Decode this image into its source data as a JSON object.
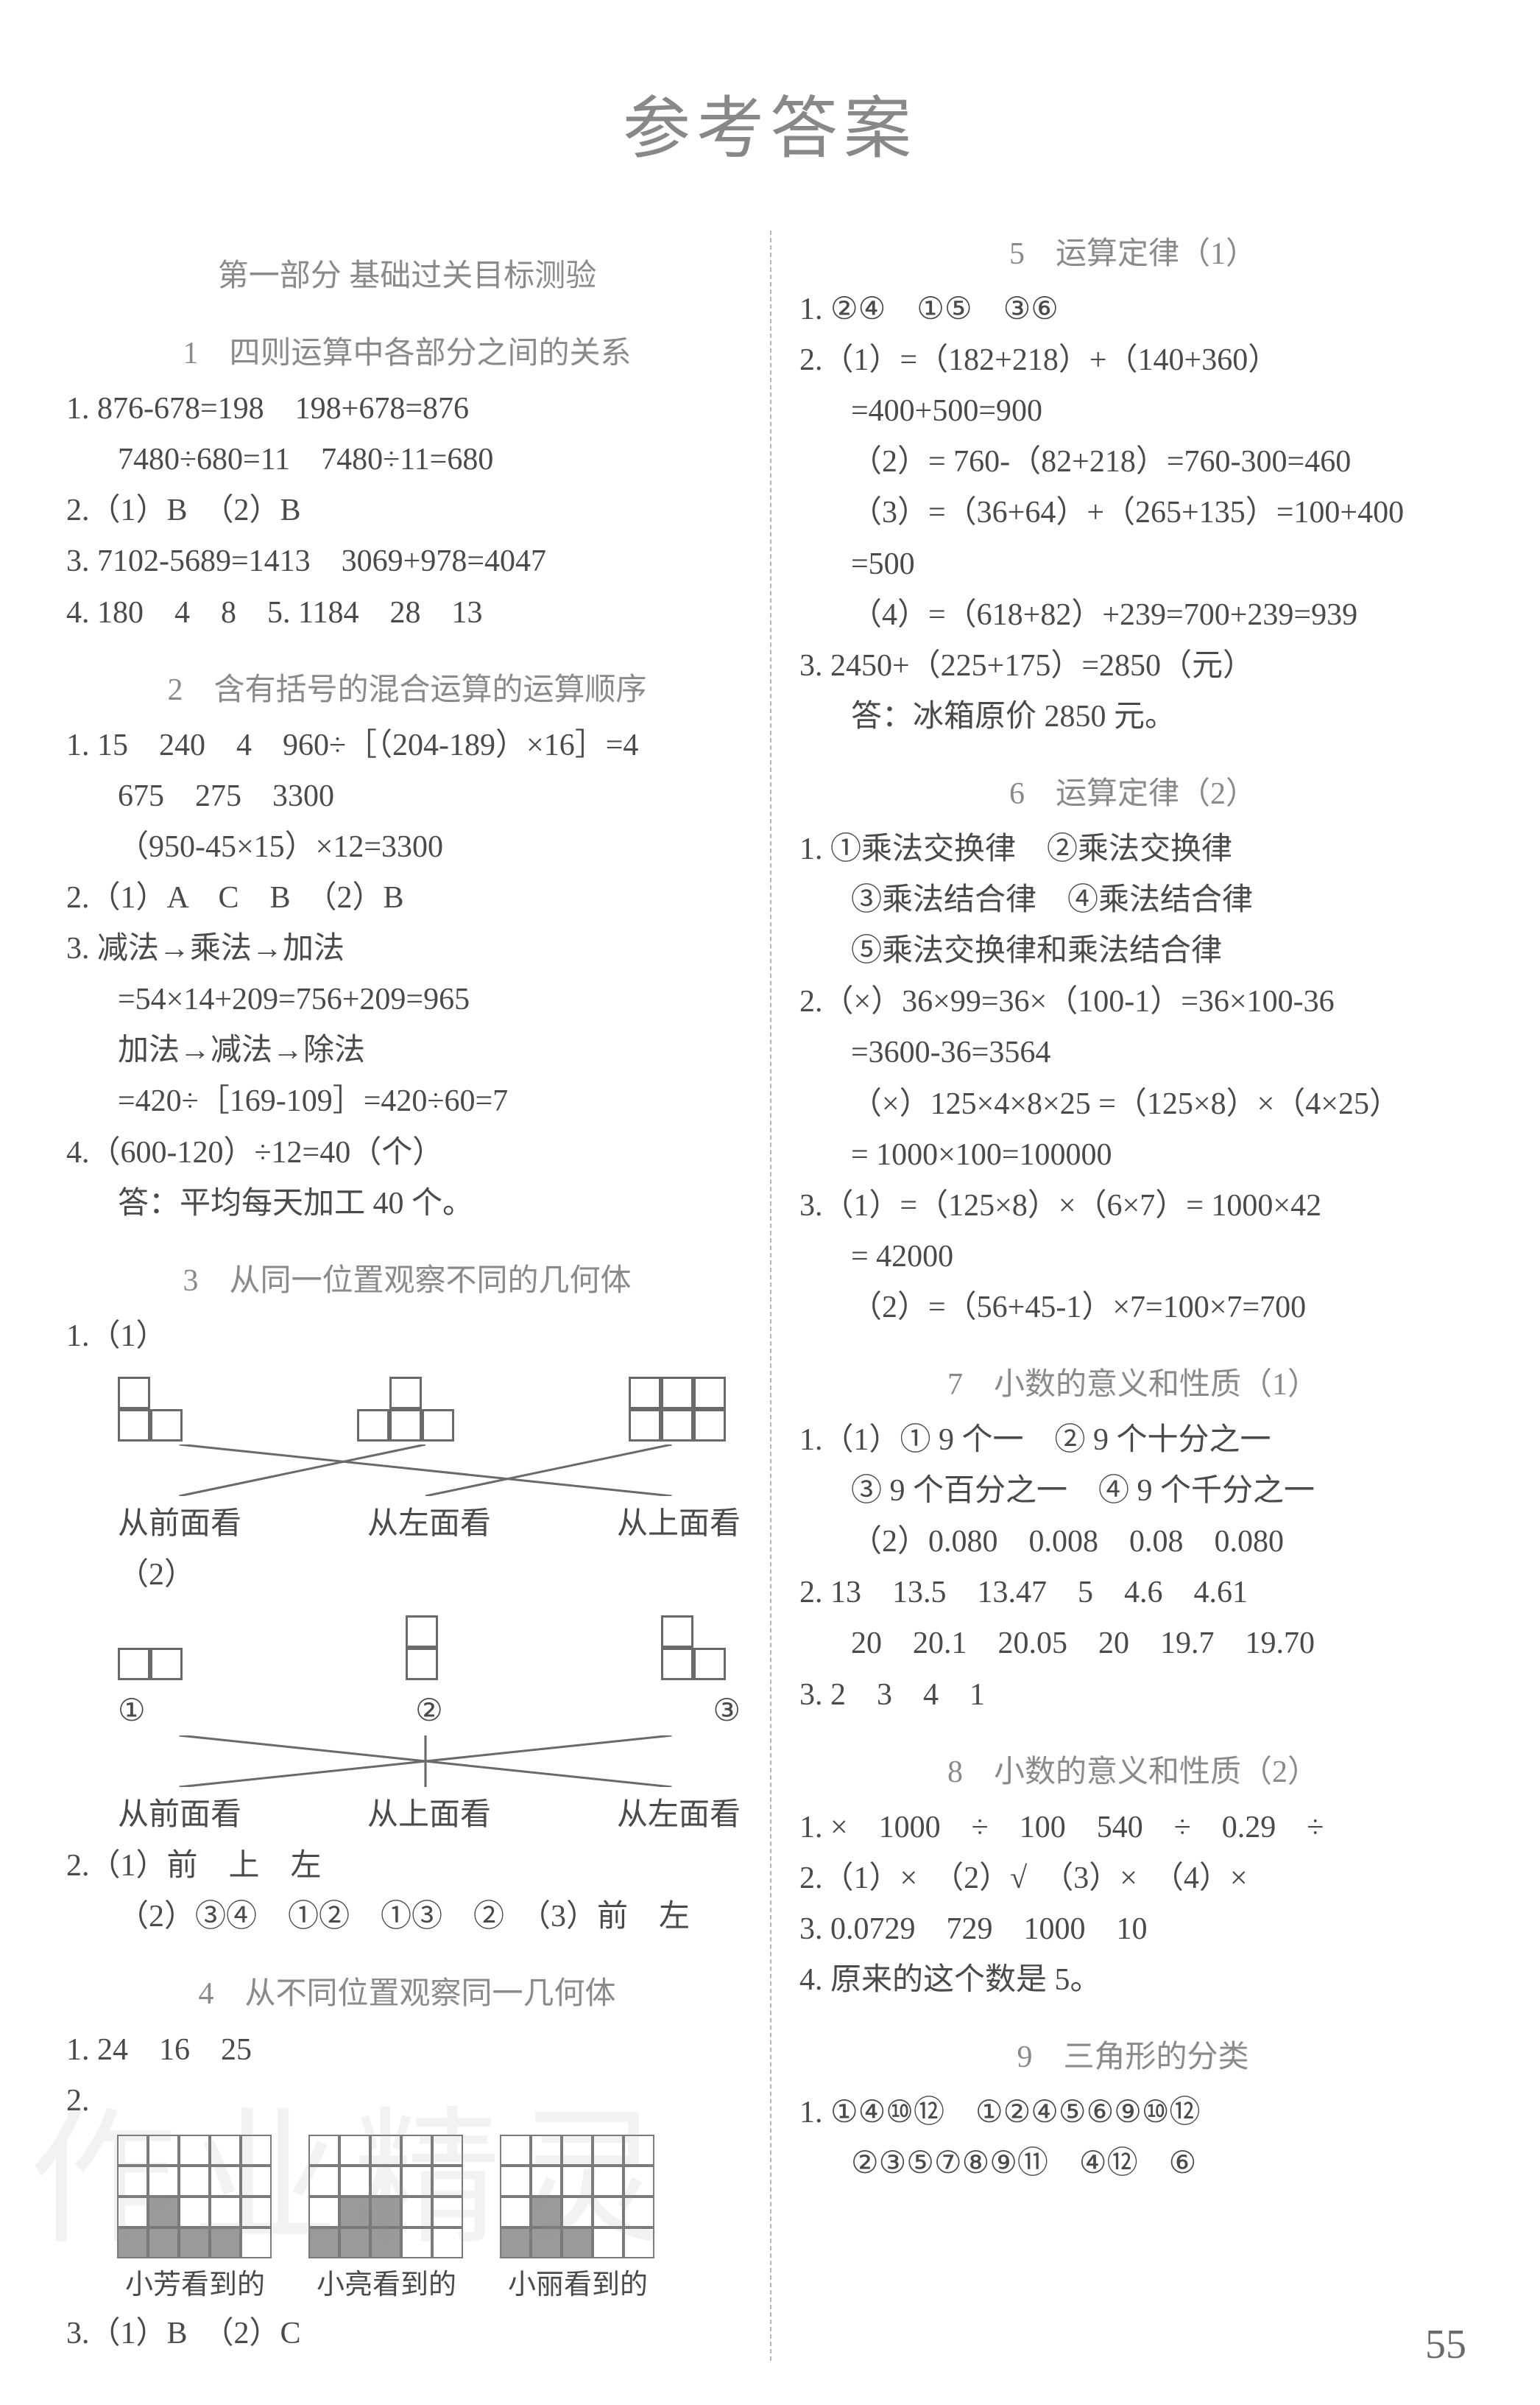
{
  "page": {
    "title": "参考答案",
    "number": "55",
    "watermark": "作业精灵"
  },
  "left": {
    "part_head": "第一部分 基础过关目标测验",
    "s1": {
      "title": "1　四则运算中各部分之间的关系",
      "l1": "1. 876-678=198　198+678=876",
      "l2": "7480÷680=11　7480÷11=680",
      "l3": "2.（1）B　（2）B",
      "l4": "3. 7102-5689=1413　3069+978=4047",
      "l5": "4. 180　4　8　5. 1184　28　13"
    },
    "s2": {
      "title": "2　含有括号的混合运算的运算顺序",
      "l1": "1. 15　240　4　960÷［（204-189）×16］=4",
      "l2": "675　275　3300",
      "l3": "（950-45×15）×12=3300",
      "l4": "2.（1）A　C　B　（2）B",
      "l5": "3. 减法→乘法→加法",
      "l6": "=54×14+209=756+209=965",
      "l7": "加法→减法→除法",
      "l8": "=420÷［169-109］=420÷60=7",
      "l9": "4.（600-120）÷12=40（个）",
      "l10": "答：平均每天加工 40 个。"
    },
    "s3": {
      "title": "3　从同一位置观察不同的几何体",
      "l1": "1.（1）",
      "labels": {
        "a": "从前面看",
        "b": "从左面看",
        "c": "从上面看"
      },
      "l2": "（2）",
      "circ": {
        "a": "①",
        "b": "②",
        "c": "③"
      },
      "labels2": {
        "a": "从前面看",
        "b": "从上面看",
        "c": "从左面看"
      },
      "l3": "2.（1）前　上　左",
      "l4": "（2）③④　①②　①③　②　（3）前　左"
    },
    "s4": {
      "title": "4　从不同位置观察同一几何体",
      "l1": "1. 24　16　25",
      "l2": "2.",
      "g1": [
        [
          0,
          0,
          0,
          0,
          0
        ],
        [
          0,
          0,
          0,
          0,
          0
        ],
        [
          0,
          1,
          0,
          0,
          0
        ],
        [
          1,
          1,
          1,
          1,
          0
        ]
      ],
      "g2": [
        [
          0,
          0,
          0,
          0,
          0
        ],
        [
          0,
          0,
          0,
          0,
          0
        ],
        [
          0,
          1,
          1,
          0,
          0
        ],
        [
          1,
          1,
          1,
          0,
          0
        ]
      ],
      "g3": [
        [
          0,
          0,
          0,
          0,
          0
        ],
        [
          0,
          0,
          0,
          0,
          0
        ],
        [
          0,
          1,
          0,
          0,
          0
        ],
        [
          1,
          1,
          1,
          0,
          0
        ]
      ],
      "caps": {
        "a": "小芳看到的",
        "b": "小亮看到的",
        "c": "小丽看到的"
      },
      "l3": "3.（1）B　（2）C"
    }
  },
  "right": {
    "s5": {
      "title": "5　运算定律（1）",
      "l1": "1. ②④　①⑤　③⑥",
      "l2": "2.（1）=（182+218）+（140+360）",
      "l3": "=400+500=900",
      "l4": "（2）= 760-（82+218）=760-300=460",
      "l5": "（3）=（36+64）+（265+135）=100+400",
      "l6": "=500",
      "l7": "（4）=（618+82）+239=700+239=939",
      "l8": "3. 2450+（225+175）=2850（元）",
      "l9": "答：冰箱原价 2850 元。"
    },
    "s6": {
      "title": "6　运算定律（2）",
      "l1": "1. ①乘法交换律　②乘法交换律",
      "l2": "③乘法结合律　④乘法结合律",
      "l3": "⑤乘法交换律和乘法结合律",
      "l4": "2.（×）36×99=36×（100-1）=36×100-36",
      "l5": "=3600-36=3564",
      "l6": "（×）125×4×8×25 =（125×8）×（4×25）",
      "l7": "= 1000×100=100000",
      "l8": "3.（1）=（125×8）×（6×7）= 1000×42",
      "l9": "= 42000",
      "l10": "（2）=（56+45-1）×7=100×7=700"
    },
    "s7": {
      "title": "7　小数的意义和性质（1）",
      "l1": "1.（1）① 9 个一　② 9 个十分之一",
      "l2": "③ 9 个百分之一　④ 9 个千分之一",
      "l3": "（2）0.080　0.008　0.08　0.080",
      "l4": "2. 13　13.5　13.47　5　4.6　4.61",
      "l5": "20　20.1　20.05　20　19.7　19.70",
      "l6": "3. 2　3　4　1"
    },
    "s8": {
      "title": "8　小数的意义和性质（2）",
      "l1": "1. ×　1000　÷　100　540　÷　0.29　÷",
      "l2": "2.（1）×　（2）√　（3）×　（4）×",
      "l3": "3. 0.0729　729　1000　10",
      "l4": "4. 原来的这个数是 5。"
    },
    "s9": {
      "title": "9　三角形的分类",
      "l1": "1. ①④⑩⑫　①②④⑤⑥⑨⑩⑫",
      "l2": "②③⑤⑦⑧⑨⑪　④⑫　⑥"
    }
  },
  "colors": {
    "text": "#4a4a4a",
    "muted": "#8a8a8a",
    "border": "#7a7a7a",
    "fill": "#9a9a9a",
    "bg": "#ffffff"
  }
}
